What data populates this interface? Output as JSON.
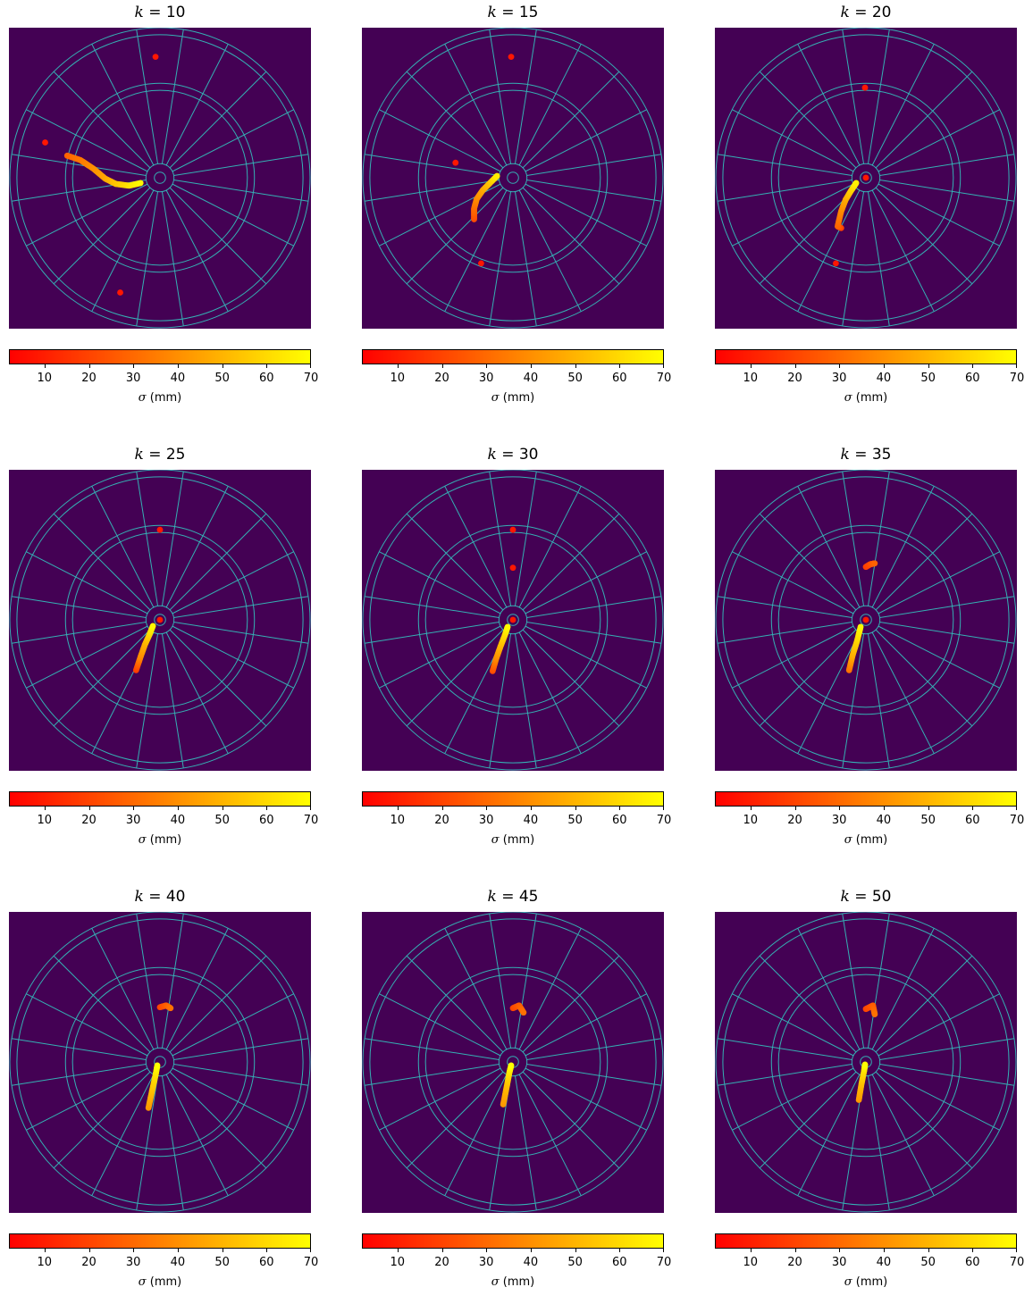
{
  "chart_data": {
    "type": "scatter",
    "background_color": "#440154",
    "board_line_color": "#35b0b4",
    "colormap": {
      "name": "autumn",
      "low_color": "#ff0000",
      "high_color": "#ffff00"
    },
    "colorbar": {
      "range": [
        2,
        70
      ],
      "ticks": [
        "10",
        "20",
        "30",
        "40",
        "50",
        "60",
        "70"
      ],
      "label_symbol": "σ",
      "label_unit": "(mm)"
    },
    "panels": [
      {
        "k_label": "k",
        "eq": " = ",
        "k_value": "10",
        "points": [
          {
            "x": -130,
            "y": 40,
            "s": 8
          },
          {
            "x": -5,
            "y": 137,
            "s": 8
          },
          {
            "x": -45,
            "y": -130,
            "s": 8
          },
          {
            "x": -105,
            "y": 25,
            "s": 28
          },
          {
            "x": -90,
            "y": 20,
            "s": 34
          },
          {
            "x": -75,
            "y": 10,
            "s": 40
          },
          {
            "x": -62,
            "y": -1,
            "s": 46
          },
          {
            "x": -50,
            "y": -7,
            "s": 54
          },
          {
            "x": -35,
            "y": -9,
            "s": 62
          },
          {
            "x": -22,
            "y": -6,
            "s": 68
          }
        ]
      },
      {
        "k_label": "k",
        "eq": " = ",
        "k_value": "15",
        "points": [
          {
            "x": -2,
            "y": 137,
            "s": 8
          },
          {
            "x": -65,
            "y": 17,
            "s": 8
          },
          {
            "x": -36,
            "y": -97,
            "s": 8
          },
          {
            "x": -44,
            "y": -47,
            "s": 22
          },
          {
            "x": -44,
            "y": -35,
            "s": 30
          },
          {
            "x": -41,
            "y": -24,
            "s": 38
          },
          {
            "x": -34,
            "y": -14,
            "s": 46
          },
          {
            "x": -26,
            "y": -6,
            "s": 54
          },
          {
            "x": -18,
            "y": 2,
            "s": 65
          }
        ]
      },
      {
        "k_label": "k",
        "eq": " = ",
        "k_value": "20",
        "points": [
          {
            "x": -1,
            "y": 102,
            "s": 8
          },
          {
            "x": -34,
            "y": -97,
            "s": 8
          },
          {
            "x": 0,
            "y": 0,
            "s": 8
          },
          {
            "x": -28,
            "y": -57,
            "s": 18
          },
          {
            "x": -32,
            "y": -55,
            "s": 28
          },
          {
            "x": -28,
            "y": -38,
            "s": 38
          },
          {
            "x": -23,
            "y": -25,
            "s": 46
          },
          {
            "x": -17,
            "y": -15,
            "s": 56
          },
          {
            "x": -11,
            "y": -6,
            "s": 66
          }
        ]
      },
      {
        "k_label": "k",
        "eq": " = ",
        "k_value": "25",
        "points": [
          {
            "x": 0,
            "y": 102,
            "s": 8
          },
          {
            "x": 0,
            "y": 0,
            "s": 8
          },
          {
            "x": -27,
            "y": -57,
            "s": 18
          },
          {
            "x": -22,
            "y": -42,
            "s": 38
          },
          {
            "x": -17,
            "y": -28,
            "s": 48
          },
          {
            "x": -12,
            "y": -17,
            "s": 58
          },
          {
            "x": -8,
            "y": -7,
            "s": 68
          }
        ]
      },
      {
        "k_label": "k",
        "eq": " = ",
        "k_value": "30",
        "points": [
          {
            "x": 0,
            "y": 102,
            "s": 8
          },
          {
            "x": 0,
            "y": 59,
            "s": 8
          },
          {
            "x": 0,
            "y": 0,
            "s": 8
          },
          {
            "x": -23,
            "y": -58,
            "s": 22
          },
          {
            "x": -19,
            "y": -44,
            "s": 38
          },
          {
            "x": -14,
            "y": -30,
            "s": 50
          },
          {
            "x": -9,
            "y": -17,
            "s": 60
          },
          {
            "x": -6,
            "y": -8,
            "s": 68
          }
        ]
      },
      {
        "k_label": "k",
        "eq": " = ",
        "k_value": "35",
        "points": [
          {
            "x": 0,
            "y": 0,
            "s": 8
          },
          {
            "x": 0,
            "y": 60,
            "s": 18
          },
          {
            "x": 5,
            "y": 63,
            "s": 22
          },
          {
            "x": 10,
            "y": 64,
            "s": 28
          },
          {
            "x": -19,
            "y": -57,
            "s": 32
          },
          {
            "x": -15,
            "y": -40,
            "s": 48
          },
          {
            "x": -10,
            "y": -24,
            "s": 58
          },
          {
            "x": -6,
            "y": -8,
            "s": 68
          }
        ]
      },
      {
        "k_label": "k",
        "eq": " = ",
        "k_value": "40",
        "points": [
          {
            "x": 0,
            "y": 62,
            "s": 20
          },
          {
            "x": 7,
            "y": 64,
            "s": 26
          },
          {
            "x": 12,
            "y": 61,
            "s": 32
          },
          {
            "x": -13,
            "y": -52,
            "s": 42
          },
          {
            "x": -9,
            "y": -33,
            "s": 52
          },
          {
            "x": -5,
            "y": -15,
            "s": 62
          },
          {
            "x": -3,
            "y": -4,
            "s": 70
          }
        ]
      },
      {
        "k_label": "k",
        "eq": " = ",
        "k_value": "45",
        "points": [
          {
            "x": 0,
            "y": 61,
            "s": 20
          },
          {
            "x": 7,
            "y": 64,
            "s": 26
          },
          {
            "x": 12,
            "y": 56,
            "s": 32
          },
          {
            "x": -11,
            "y": -48,
            "s": 42
          },
          {
            "x": -7,
            "y": -28,
            "s": 52
          },
          {
            "x": -4,
            "y": -12,
            "s": 62
          },
          {
            "x": -2,
            "y": -4,
            "s": 70
          }
        ]
      },
      {
        "k_label": "k",
        "eq": " = ",
        "k_value": "50",
        "points": [
          {
            "x": 0,
            "y": 60,
            "s": 20
          },
          {
            "x": 8,
            "y": 64,
            "s": 26
          },
          {
            "x": 10,
            "y": 54,
            "s": 32
          },
          {
            "x": -8,
            "y": -43,
            "s": 42
          },
          {
            "x": -5,
            "y": -25,
            "s": 52
          },
          {
            "x": -2,
            "y": -10,
            "s": 62
          },
          {
            "x": -1,
            "y": -3,
            "s": 70
          }
        ]
      }
    ]
  }
}
